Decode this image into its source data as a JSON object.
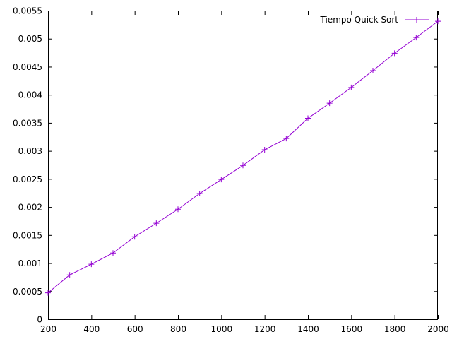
{
  "chart_data": {
    "type": "line",
    "title": "",
    "xlabel": "",
    "ylabel": "",
    "xlim": [
      200,
      2000
    ],
    "ylim": [
      0,
      0.0055
    ],
    "x_ticks": [
      "200",
      "400",
      "600",
      "800",
      "1000",
      "1200",
      "1400",
      "1600",
      "1800",
      "2000"
    ],
    "y_ticks": [
      "0",
      "0.0005",
      "0.001",
      "0.0015",
      "0.002",
      "0.0025",
      "0.003",
      "0.0035",
      "0.004",
      "0.0045",
      "0.005",
      "0.0055"
    ],
    "grid": false,
    "legend_position": "top-right",
    "series": [
      {
        "name": "Tiempo Quick Sort",
        "color": "#9400d3",
        "marker": "plus",
        "x": [
          200,
          300,
          400,
          500,
          600,
          700,
          800,
          900,
          1000,
          1100,
          1200,
          1300,
          1400,
          1500,
          1600,
          1700,
          1800,
          1900,
          2000
        ],
        "y": [
          0.00047,
          0.00079,
          0.00098,
          0.00118,
          0.00147,
          0.00171,
          0.00196,
          0.00224,
          0.00249,
          0.00274,
          0.00302,
          0.00322,
          0.00358,
          0.00385,
          0.00413,
          0.00443,
          0.00474,
          0.00502,
          0.00531
        ]
      }
    ]
  }
}
